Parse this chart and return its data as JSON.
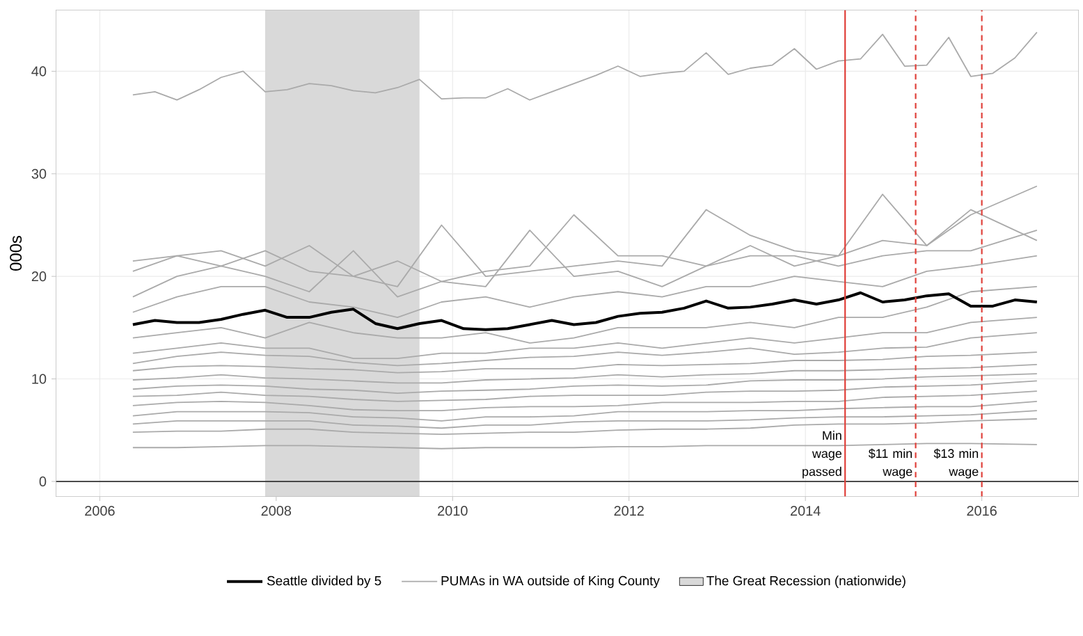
{
  "chart_data": {
    "type": "line",
    "ylabel": "000s",
    "xlim": [
      2005.5,
      2017.1
    ],
    "ylim": [
      -1.5,
      46
    ],
    "xticks": [
      2006,
      2008,
      2010,
      2012,
      2014,
      2016
    ],
    "yticks": [
      0,
      10,
      20,
      30,
      40
    ],
    "grid": true,
    "legend": "bottom",
    "x": [
      2006.375,
      2006.625,
      2006.875,
      2007.125,
      2007.375,
      2007.625,
      2007.875,
      2008.125,
      2008.375,
      2008.625,
      2008.875,
      2009.125,
      2009.375,
      2009.625,
      2009.875,
      2010.125,
      2010.375,
      2010.625,
      2010.875,
      2011.125,
      2011.375,
      2011.625,
      2011.875,
      2012.125,
      2012.375,
      2012.625,
      2012.875,
      2013.125,
      2013.375,
      2013.625,
      2013.875,
      2014.125,
      2014.375,
      2014.625,
      2014.875,
      2015.125,
      2015.375,
      2015.625,
      2015.875,
      2016.125,
      2016.375,
      2016.625
    ],
    "series": [
      {
        "name": "PUMAs in WA outside of King County",
        "color": "#aaaaaa",
        "values": [
          37.7,
          38.0,
          37.2,
          38.2,
          39.4,
          40.0,
          38.0,
          38.2,
          38.8,
          38.6,
          38.1,
          37.9,
          38.4,
          39.2,
          37.3,
          37.4,
          37.4,
          38.3,
          37.2,
          38.0,
          38.8,
          39.6,
          40.5,
          39.5,
          39.8,
          40.0,
          41.8,
          39.7,
          40.3,
          40.6,
          42.2,
          40.2,
          41.0,
          41.2,
          43.6,
          40.5,
          40.6,
          43.3,
          39.5,
          39.8,
          41.3,
          43.8
        ]
      },
      {
        "color": "#aaaaaa",
        "x": [
          2006.375,
          2006.875,
          2007.375,
          2007.875,
          2008.375,
          2008.875,
          2009.375,
          2009.875,
          2010.375,
          2010.875,
          2011.375,
          2011.875,
          2012.375,
          2012.875,
          2013.375,
          2013.875,
          2014.375,
          2014.875,
          2015.375,
          2015.875,
          2016.625
        ],
        "values": [
          21.5,
          22,
          22.5,
          21,
          23,
          20,
          21.5,
          19.5,
          20.5,
          21,
          26,
          22,
          22,
          21,
          23,
          21,
          22,
          23.5,
          23,
          26,
          28.8
        ]
      },
      {
        "color": "#aaaaaa",
        "x": [
          2006.375,
          2006.875,
          2007.375,
          2007.875,
          2008.375,
          2008.875,
          2009.375,
          2009.875,
          2010.375,
          2010.875,
          2011.375,
          2011.875,
          2012.375,
          2012.875,
          2013.375,
          2013.875,
          2014.375,
          2014.875,
          2015.375,
          2015.875,
          2016.625
        ],
        "values": [
          20.5,
          22,
          21,
          22.5,
          20.5,
          20,
          19,
          25,
          20,
          20.5,
          21,
          21.5,
          21,
          26.5,
          24,
          22.5,
          22,
          28,
          23,
          26.5,
          23.5
        ]
      },
      {
        "color": "#aaaaaa",
        "x": [
          2006.375,
          2006.875,
          2007.375,
          2007.875,
          2008.375,
          2008.875,
          2009.375,
          2009.875,
          2010.375,
          2010.875,
          2011.375,
          2011.875,
          2012.375,
          2012.875,
          2013.375,
          2013.875,
          2014.375,
          2014.875,
          2015.375,
          2015.875,
          2016.625
        ],
        "values": [
          18,
          20,
          21,
          20,
          18.5,
          22.5,
          18,
          19.5,
          19,
          24.5,
          20,
          20.5,
          19,
          21,
          22,
          22,
          21,
          22,
          22.5,
          22.5,
          24.5
        ]
      },
      {
        "color": "#aaaaaa",
        "x": [
          2006.375,
          2006.875,
          2007.375,
          2007.875,
          2008.375,
          2008.875,
          2009.375,
          2009.875,
          2010.375,
          2010.875,
          2011.375,
          2011.875,
          2012.375,
          2012.875,
          2013.375,
          2013.875,
          2014.375,
          2014.875,
          2015.375,
          2015.875,
          2016.625
        ],
        "values": [
          16.5,
          18,
          19,
          19,
          17.5,
          17,
          16,
          17.5,
          18,
          17,
          18,
          18.5,
          18,
          19,
          19,
          20,
          19.5,
          19,
          20.5,
          21,
          22
        ]
      },
      {
        "color": "#aaaaaa",
        "x": [
          2006.375,
          2006.875,
          2007.375,
          2007.875,
          2008.375,
          2008.875,
          2009.375,
          2009.875,
          2010.375,
          2010.875,
          2011.375,
          2011.875,
          2012.375,
          2012.875,
          2013.375,
          2013.875,
          2014.375,
          2014.875,
          2015.375,
          2015.875,
          2016.625
        ],
        "values": [
          14,
          14.5,
          15,
          14,
          15.5,
          14.5,
          14,
          14,
          14.5,
          13.5,
          14,
          15,
          15,
          15,
          15.5,
          15,
          16,
          16,
          17,
          18.5,
          19
        ]
      },
      {
        "color": "#aaaaaa",
        "x": [
          2006.375,
          2006.875,
          2007.375,
          2007.875,
          2008.375,
          2008.875,
          2009.375,
          2009.875,
          2010.375,
          2010.875,
          2011.375,
          2011.875,
          2012.375,
          2012.875,
          2013.375,
          2013.875,
          2014.375,
          2014.875,
          2015.375,
          2015.875,
          2016.625
        ],
        "values": [
          12.5,
          13,
          13.5,
          13,
          13,
          12,
          12,
          12.5,
          12.5,
          13,
          13,
          13.5,
          13,
          13.5,
          14,
          13.5,
          14,
          14.5,
          14.5,
          15.5,
          16
        ]
      },
      {
        "color": "#aaaaaa",
        "x": [
          2006.375,
          2006.875,
          2007.375,
          2007.875,
          2008.375,
          2008.875,
          2009.375,
          2009.875,
          2010.375,
          2010.875,
          2011.375,
          2011.875,
          2012.375,
          2012.875,
          2013.375,
          2013.875,
          2014.375,
          2014.875,
          2015.375,
          2015.875,
          2016.625
        ],
        "values": [
          11.5,
          12.2,
          12.6,
          12.3,
          12.2,
          11.6,
          11.3,
          11.5,
          11.8,
          12.1,
          12.2,
          12.6,
          12.3,
          12.6,
          13,
          12.4,
          12.6,
          13,
          13.1,
          14,
          14.5
        ]
      },
      {
        "color": "#aaaaaa",
        "x": [
          2006.375,
          2006.875,
          2007.375,
          2007.875,
          2008.375,
          2008.875,
          2009.375,
          2009.875,
          2010.375,
          2010.875,
          2011.375,
          2011.875,
          2012.375,
          2012.875,
          2013.375,
          2013.875,
          2014.375,
          2014.875,
          2015.375,
          2015.875,
          2016.625
        ],
        "values": [
          10.8,
          11.2,
          11.3,
          11.2,
          11,
          10.9,
          10.6,
          10.7,
          11,
          11,
          11,
          11.4,
          11.3,
          11.4,
          11.5,
          11.8,
          11.8,
          11.9,
          12.2,
          12.3,
          12.6
        ]
      },
      {
        "color": "#aaaaaa",
        "x": [
          2006.375,
          2006.875,
          2007.375,
          2007.875,
          2008.375,
          2008.875,
          2009.375,
          2009.875,
          2010.375,
          2010.875,
          2011.375,
          2011.875,
          2012.375,
          2012.875,
          2013.375,
          2013.875,
          2014.375,
          2014.875,
          2015.375,
          2015.875,
          2016.625
        ],
        "values": [
          9.9,
          10.1,
          10.4,
          10.1,
          10,
          9.8,
          9.6,
          9.6,
          9.9,
          10,
          10.1,
          10.4,
          10.2,
          10.4,
          10.5,
          10.8,
          10.8,
          10.9,
          11,
          11.1,
          11.4
        ]
      },
      {
        "color": "#aaaaaa",
        "x": [
          2006.375,
          2006.875,
          2007.375,
          2007.875,
          2008.375,
          2008.875,
          2009.375,
          2009.875,
          2010.375,
          2010.875,
          2011.375,
          2011.875,
          2012.375,
          2012.875,
          2013.375,
          2013.875,
          2014.375,
          2014.875,
          2015.375,
          2015.875,
          2016.625
        ],
        "values": [
          9,
          9.3,
          9.4,
          9.3,
          9,
          8.9,
          8.6,
          8.8,
          8.9,
          9,
          9.3,
          9.4,
          9.3,
          9.4,
          9.8,
          9.9,
          9.9,
          10,
          10.2,
          10.3,
          10.5
        ]
      },
      {
        "color": "#aaaaaa",
        "x": [
          2006.375,
          2006.875,
          2007.375,
          2007.875,
          2008.375,
          2008.875,
          2009.375,
          2009.875,
          2010.375,
          2010.875,
          2011.375,
          2011.875,
          2012.375,
          2012.875,
          2013.375,
          2013.875,
          2014.375,
          2014.875,
          2015.375,
          2015.875,
          2016.625
        ],
        "values": [
          8.3,
          8.4,
          8.7,
          8.4,
          8.3,
          8,
          7.8,
          7.9,
          8,
          8.3,
          8.4,
          8.4,
          8.4,
          8.7,
          8.8,
          8.8,
          8.9,
          9.2,
          9.3,
          9.4,
          9.8
        ]
      },
      {
        "color": "#aaaaaa",
        "x": [
          2006.375,
          2006.875,
          2007.375,
          2007.875,
          2008.375,
          2008.875,
          2009.375,
          2009.875,
          2010.375,
          2010.875,
          2011.375,
          2011.875,
          2012.375,
          2012.875,
          2013.375,
          2013.875,
          2014.375,
          2014.875,
          2015.375,
          2015.875,
          2016.625
        ],
        "values": [
          7.4,
          7.7,
          7.8,
          7.7,
          7.4,
          7,
          6.9,
          6.9,
          7.2,
          7.3,
          7.3,
          7.4,
          7.7,
          7.7,
          7.7,
          7.8,
          7.8,
          8.2,
          8.3,
          8.4,
          8.8
        ]
      },
      {
        "color": "#aaaaaa",
        "x": [
          2006.375,
          2006.875,
          2007.375,
          2007.875,
          2008.375,
          2008.875,
          2009.375,
          2009.875,
          2010.375,
          2010.875,
          2011.375,
          2011.875,
          2012.375,
          2012.875,
          2013.375,
          2013.875,
          2014.375,
          2014.875,
          2015.375,
          2015.875,
          2016.625
        ],
        "values": [
          6.4,
          6.8,
          6.8,
          6.8,
          6.7,
          6.3,
          6.2,
          5.9,
          6.3,
          6.3,
          6.4,
          6.8,
          6.8,
          6.8,
          6.9,
          6.9,
          7.1,
          7.2,
          7.3,
          7.3,
          7.8
        ]
      },
      {
        "color": "#aaaaaa",
        "x": [
          2006.375,
          2006.875,
          2007.375,
          2007.875,
          2008.375,
          2008.875,
          2009.375,
          2009.875,
          2010.375,
          2010.875,
          2011.375,
          2011.875,
          2012.375,
          2012.875,
          2013.375,
          2013.875,
          2014.375,
          2014.875,
          2015.375,
          2015.875,
          2016.625
        ],
        "values": [
          5.6,
          5.9,
          5.9,
          5.9,
          5.9,
          5.5,
          5.4,
          5.2,
          5.5,
          5.5,
          5.8,
          5.9,
          5.9,
          5.9,
          6,
          6.2,
          6.3,
          6.3,
          6.4,
          6.5,
          6.9
        ]
      },
      {
        "color": "#aaaaaa",
        "x": [
          2006.375,
          2006.875,
          2007.375,
          2007.875,
          2008.375,
          2008.875,
          2009.375,
          2009.875,
          2010.375,
          2010.875,
          2011.375,
          2011.875,
          2012.375,
          2012.875,
          2013.375,
          2013.875,
          2014.375,
          2014.875,
          2015.375,
          2015.875,
          2016.625
        ],
        "values": [
          4.8,
          4.9,
          4.9,
          5.1,
          5.1,
          4.8,
          4.7,
          4.6,
          4.7,
          4.8,
          4.8,
          5,
          5.1,
          5.1,
          5.2,
          5.5,
          5.6,
          5.6,
          5.7,
          5.9,
          6.1
        ]
      },
      {
        "color": "#aaaaaa",
        "x": [
          2006.375,
          2006.875,
          2007.375,
          2007.875,
          2008.375,
          2008.875,
          2009.375,
          2009.875,
          2010.375,
          2010.875,
          2011.375,
          2011.875,
          2012.375,
          2012.875,
          2013.375,
          2013.875,
          2014.375,
          2014.875,
          2015.375,
          2015.875,
          2016.625
        ],
        "values": [
          3.3,
          3.3,
          3.4,
          3.5,
          3.5,
          3.4,
          3.3,
          3.2,
          3.3,
          3.3,
          3.3,
          3.4,
          3.4,
          3.5,
          3.5,
          3.5,
          3.5,
          3.6,
          3.7,
          3.7,
          3.6
        ]
      },
      {
        "name": "Seattle divided by 5",
        "color": "#000000",
        "values": [
          15.3,
          15.7,
          15.5,
          15.5,
          15.8,
          16.3,
          16.7,
          16.0,
          16.0,
          16.5,
          16.8,
          15.4,
          14.9,
          15.4,
          15.7,
          14.9,
          14.8,
          14.9,
          15.3,
          15.7,
          15.3,
          15.5,
          16.1,
          16.4,
          16.5,
          16.9,
          17.6,
          16.9,
          17.0,
          17.3,
          17.7,
          17.3,
          17.7,
          18.4,
          17.5,
          17.7,
          18.1,
          18.3,
          17.1,
          17.1,
          17.7,
          17.5
        ]
      }
    ],
    "bands": [
      {
        "axis": "x",
        "from": 2007.875,
        "to": 2009.625,
        "label": "The Great Recession (nationwide)",
        "color": "#d9d9d9"
      }
    ],
    "ref_lines": [
      {
        "axis": "y",
        "value": 0,
        "color": "#333333",
        "line_style": "solid"
      },
      {
        "axis": "x",
        "value": 2014.45,
        "label": "Min wage passed",
        "color": "#e0403a",
        "line_style": "solid"
      },
      {
        "axis": "x",
        "value": 2015.25,
        "label": "$11 min wage",
        "color": "#e0403a",
        "line_style": "dashed"
      },
      {
        "axis": "x",
        "value": 2016.0,
        "label": "$13 min wage",
        "color": "#e0403a",
        "line_style": "dashed"
      }
    ]
  }
}
